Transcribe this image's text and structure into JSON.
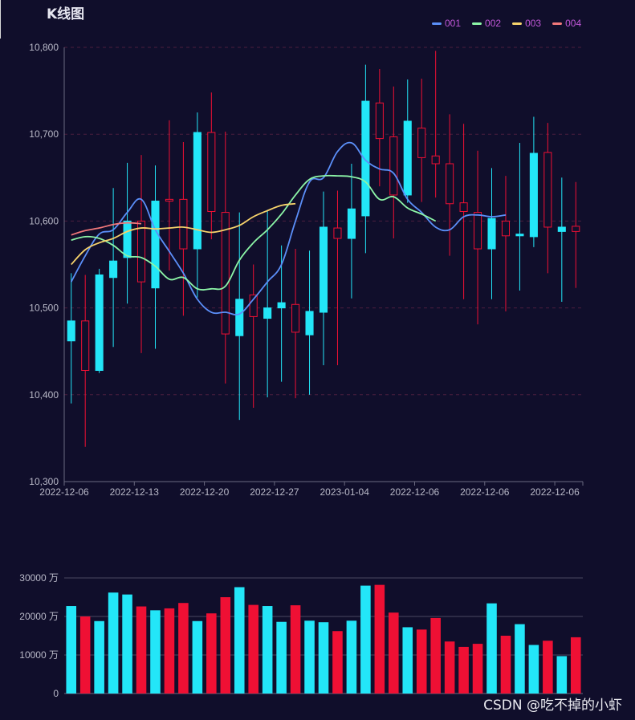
{
  "title": "K线图",
  "watermark": "CSDN @吃不掉的小虾",
  "colors": {
    "background": "#100e2b",
    "up": "#23e6f8",
    "down": "#ef1034",
    "grid_dashed": "#4b1e3e",
    "axis": "#6a6a80",
    "label": "#b9b9c8",
    "legend_text": "#c157d8"
  },
  "chart_data": [
    {
      "type": "candlestick",
      "title": "K线图",
      "ylim": [
        10300,
        10800
      ],
      "yticks": [
        "10,300",
        "10,400",
        "10,500",
        "10,600",
        "10,700",
        "10,800"
      ],
      "ytick_values": [
        10300,
        10400,
        10500,
        10600,
        10700,
        10800
      ],
      "xtick_labels": [
        {
          "index": 0,
          "label": "2022-12-06"
        },
        {
          "index": 5,
          "label": "2022-12-13"
        },
        {
          "index": 10,
          "label": "2022-12-20"
        },
        {
          "index": 15,
          "label": "2022-12-27"
        },
        {
          "index": 20,
          "label": "2023-01-04"
        },
        {
          "index": 25,
          "label": "2022-12-06"
        },
        {
          "index": 30,
          "label": "2022-12-06"
        },
        {
          "index": 35,
          "label": "2022-12-06"
        }
      ],
      "grid": true,
      "legend_position": "top-right",
      "candles": [
        {
          "open": 10462,
          "close": 10485,
          "low": 10390,
          "high": 10540
        },
        {
          "open": 10485,
          "close": 10428,
          "low": 10340,
          "high": 10538
        },
        {
          "open": 10428,
          "close": 10538,
          "low": 10425,
          "high": 10545
        },
        {
          "open": 10535,
          "close": 10554,
          "low": 10455,
          "high": 10638
        },
        {
          "open": 10558,
          "close": 10600,
          "low": 10505,
          "high": 10667
        },
        {
          "open": 10600,
          "close": 10530,
          "low": 10448,
          "high": 10676
        },
        {
          "open": 10523,
          "close": 10623,
          "low": 10453,
          "high": 10664
        },
        {
          "open": 10625,
          "close": 10623,
          "low": 10543,
          "high": 10716
        },
        {
          "open": 10625,
          "close": 10568,
          "low": 10491,
          "high": 10691
        },
        {
          "open": 10568,
          "close": 10702,
          "low": 10512,
          "high": 10725
        },
        {
          "open": 10702,
          "close": 10611,
          "low": 10579,
          "high": 10748
        },
        {
          "open": 10610,
          "close": 10470,
          "low": 10413,
          "high": 10703
        },
        {
          "open": 10468,
          "close": 10510,
          "low": 10371,
          "high": 10610
        },
        {
          "open": 10515,
          "close": 10490,
          "low": 10385,
          "high": 10550
        },
        {
          "open": 10488,
          "close": 10500,
          "low": 10397,
          "high": 10613
        },
        {
          "open": 10500,
          "close": 10506,
          "low": 10415,
          "high": 10572
        },
        {
          "open": 10504,
          "close": 10472,
          "low": 10396,
          "high": 10568
        },
        {
          "open": 10469,
          "close": 10496,
          "low": 10400,
          "high": 10566
        },
        {
          "open": 10495,
          "close": 10593,
          "low": 10434,
          "high": 10634
        },
        {
          "open": 10592,
          "close": 10580,
          "low": 10434,
          "high": 10635
        },
        {
          "open": 10580,
          "close": 10614,
          "low": 10511,
          "high": 10666
        },
        {
          "open": 10606,
          "close": 10738,
          "low": 10563,
          "high": 10780
        },
        {
          "open": 10736,
          "close": 10695,
          "low": 10640,
          "high": 10775
        },
        {
          "open": 10697,
          "close": 10630,
          "low": 10580,
          "high": 10755
        },
        {
          "open": 10630,
          "close": 10715,
          "low": 10621,
          "high": 10763
        },
        {
          "open": 10707,
          "close": 10673,
          "low": 10622,
          "high": 10764
        },
        {
          "open": 10675,
          "close": 10666,
          "low": 10627,
          "high": 10796
        },
        {
          "open": 10666,
          "close": 10620,
          "low": 10560,
          "high": 10723
        },
        {
          "open": 10621,
          "close": 10611,
          "low": 10510,
          "high": 10712
        },
        {
          "open": 10610,
          "close": 10568,
          "low": 10481,
          "high": 10681
        },
        {
          "open": 10568,
          "close": 10603,
          "low": 10510,
          "high": 10661
        },
        {
          "open": 10600,
          "close": 10583,
          "low": 10496,
          "high": 10652
        },
        {
          "open": 10583,
          "close": 10585,
          "low": 10520,
          "high": 10690
        },
        {
          "open": 10582,
          "close": 10678,
          "low": 10570,
          "high": 10720
        },
        {
          "open": 10679,
          "close": 10593,
          "low": 10540,
          "high": 10713
        },
        {
          "open": 10588,
          "close": 10593,
          "low": 10507,
          "high": 10650
        },
        {
          "open": 10594,
          "close": 10588,
          "low": 10523,
          "high": 10645
        }
      ],
      "series": [
        {
          "name": "001",
          "color": "#5b8ff9",
          "values": [
            10530,
            10560,
            10585,
            10590,
            10610,
            10625,
            10590,
            10565,
            10540,
            10510,
            10495,
            10495,
            10493,
            10510,
            10530,
            10550,
            10600,
            10645,
            10650,
            10680,
            10690,
            10670,
            10660,
            10655,
            10625,
            10610,
            10593,
            10590,
            10605,
            10607,
            10605,
            10607
          ]
        },
        {
          "name": "002",
          "color": "#8cf5a7",
          "values": [
            10578,
            10582,
            10580,
            10572,
            10560,
            10558,
            10548,
            10533,
            10535,
            10522,
            10522,
            10525,
            10555,
            10575,
            10590,
            10608,
            10630,
            10648,
            10652,
            10652,
            10651,
            10645,
            10625,
            10628,
            10615,
            10608,
            10600
          ]
        },
        {
          "name": "003",
          "color": "#f6d26b",
          "values": [
            10550,
            10567,
            10575,
            10580,
            10588,
            10592,
            10591,
            10592,
            10593,
            10590,
            10587,
            10590,
            10595,
            10605,
            10612,
            10618,
            10620
          ]
        },
        {
          "name": "004",
          "color": "#f2787a",
          "values": [
            10584,
            10589,
            10592,
            10596,
            10598,
            10597
          ]
        }
      ]
    },
    {
      "type": "bar",
      "title": "",
      "ylim": [
        0,
        30000
      ],
      "yticks": [
        "0",
        "10000 万",
        "20000 万",
        "30000 万"
      ],
      "ytick_values": [
        0,
        10000,
        20000,
        30000
      ],
      "values": [
        22700,
        20000,
        18800,
        26200,
        25700,
        22600,
        21600,
        22100,
        23500,
        18800,
        20800,
        25000,
        27600,
        23000,
        22700,
        18600,
        22900,
        18900,
        18500,
        16200,
        18900,
        28000,
        28200,
        21000,
        17200,
        16600,
        19600,
        13500,
        12100,
        12900,
        23400,
        15000,
        18000,
        12600,
        13700,
        9700,
        14600
      ],
      "directions": [
        "up",
        "down",
        "up",
        "up",
        "up",
        "down",
        "up",
        "down",
        "down",
        "up",
        "down",
        "down",
        "up",
        "down",
        "up",
        "up",
        "down",
        "up",
        "up",
        "down",
        "up",
        "up",
        "down",
        "down",
        "up",
        "down",
        "down",
        "down",
        "down",
        "down",
        "up",
        "down",
        "up",
        "up",
        "down",
        "up",
        "down"
      ]
    }
  ]
}
